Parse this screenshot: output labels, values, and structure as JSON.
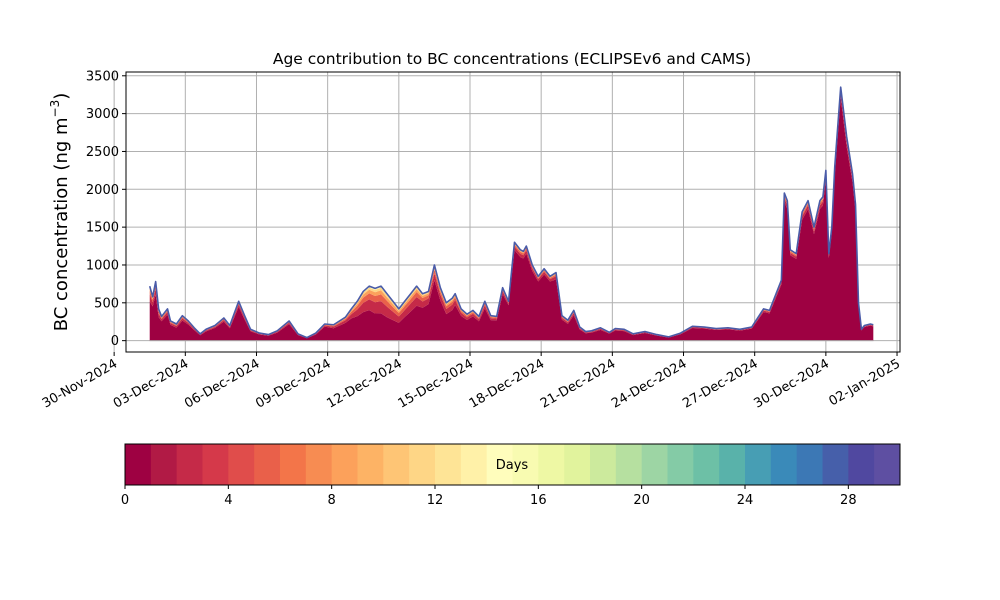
{
  "chart_data": {
    "type": "area",
    "title": "Age contribution to BC concentrations (ECLIPSEv6 and CAMS)",
    "ylabel": "BC concentration (ng m",
    "ylabel_sup": "−3",
    "ylabel_close": ")",
    "xlabel": "",
    "ylim": [
      -150,
      3550
    ],
    "xlim": [
      "2024-11-30T12:00",
      "2025-01-02T03:00"
    ],
    "yticks": [
      0,
      500,
      1000,
      1500,
      2000,
      2500,
      3000,
      3500
    ],
    "ytick_labels": [
      "0",
      "500",
      "1000",
      "1500",
      "2000",
      "2500",
      "3000",
      "3500"
    ],
    "xticks": [
      "2024-11-30",
      "2024-12-03",
      "2024-12-06",
      "2024-12-09",
      "2024-12-12",
      "2024-12-15",
      "2024-12-18",
      "2024-12-21",
      "2024-12-24",
      "2024-12-27",
      "2024-12-30",
      "2025-01-02"
    ],
    "xtick_labels": [
      "30-Nov-2024",
      "03-Dec-2024",
      "06-Dec-2024",
      "09-Dec-2024",
      "12-Dec-2024",
      "15-Dec-2024",
      "18-Dec-2024",
      "21-Dec-2024",
      "24-Dec-2024",
      "27-Dec-2024",
      "30-Dec-2024",
      "02-Jan-2025"
    ],
    "grid": true,
    "total": {
      "x": [
        "2024-12-01T12:00",
        "2024-12-01T15:00",
        "2024-12-01T18:00",
        "2024-12-01T21:00",
        "2024-12-02T00:00",
        "2024-12-02T06:00",
        "2024-12-02T09:00",
        "2024-12-02T15:00",
        "2024-12-02T21:00",
        "2024-12-03T03:00",
        "2024-12-03T09:00",
        "2024-12-03T15:00",
        "2024-12-03T21:00",
        "2024-12-04T06:00",
        "2024-12-04T15:00",
        "2024-12-04T21:00",
        "2024-12-05T06:00",
        "2024-12-05T12:00",
        "2024-12-05T18:00",
        "2024-12-06T03:00",
        "2024-12-06T12:00",
        "2024-12-06T21:00",
        "2024-12-07T09:00",
        "2024-12-07T18:00",
        "2024-12-08T03:00",
        "2024-12-08T12:00",
        "2024-12-08T21:00",
        "2024-12-09T06:00",
        "2024-12-09T18:00",
        "2024-12-10T00:00",
        "2024-12-10T06:00",
        "2024-12-10T12:00",
        "2024-12-10T18:00",
        "2024-12-11T00:00",
        "2024-12-11T06:00",
        "2024-12-11T12:00",
        "2024-12-11T18:00",
        "2024-12-12T00:00",
        "2024-12-12T06:00",
        "2024-12-12T12:00",
        "2024-12-12T18:00",
        "2024-12-13T00:00",
        "2024-12-13T06:00",
        "2024-12-13T12:00",
        "2024-12-13T18:00",
        "2024-12-14T00:00",
        "2024-12-14T06:00",
        "2024-12-14T09:00",
        "2024-12-14T15:00",
        "2024-12-14T21:00",
        "2024-12-15T03:00",
        "2024-12-15T09:00",
        "2024-12-15T15:00",
        "2024-12-15T21:00",
        "2024-12-16T03:00",
        "2024-12-16T09:00",
        "2024-12-16T15:00",
        "2024-12-16T21:00",
        "2024-12-17T03:00",
        "2024-12-17T06:00",
        "2024-12-17T09:00",
        "2024-12-17T15:00",
        "2024-12-17T21:00",
        "2024-12-18T03:00",
        "2024-12-18T09:00",
        "2024-12-18T15:00",
        "2024-12-18T21:00",
        "2024-12-19T03:00",
        "2024-12-19T09:00",
        "2024-12-19T15:00",
        "2024-12-19T21:00",
        "2024-12-20T03:00",
        "2024-12-20T12:00",
        "2024-12-20T21:00",
        "2024-12-21T03:00",
        "2024-12-21T12:00",
        "2024-12-21T21:00",
        "2024-12-22T09:00",
        "2024-12-22T21:00",
        "2024-12-23T09:00",
        "2024-12-23T21:00",
        "2024-12-24T09:00",
        "2024-12-24T21:00",
        "2024-12-25T09:00",
        "2024-12-25T21:00",
        "2024-12-26T09:00",
        "2024-12-26T21:00",
        "2024-12-27T09:00",
        "2024-12-27T15:00",
        "2024-12-27T21:00",
        "2024-12-28T03:00",
        "2024-12-28T06:00",
        "2024-12-28T09:00",
        "2024-12-28T12:00",
        "2024-12-28T18:00",
        "2024-12-29T00:00",
        "2024-12-29T06:00",
        "2024-12-29T12:00",
        "2024-12-29T18:00",
        "2024-12-29T21:00",
        "2024-12-30T00:00",
        "2024-12-30T03:00",
        "2024-12-30T06:00",
        "2024-12-30T09:00",
        "2024-12-30T15:00",
        "2024-12-30T21:00",
        "2024-12-31T03:00",
        "2024-12-31T06:00",
        "2024-12-31T09:00",
        "2024-12-31T12:00",
        "2024-12-31T15:00",
        "2024-12-31T21:00",
        "2025-01-01T00:00"
      ],
      "values": [
        720,
        580,
        780,
        420,
        320,
        420,
        260,
        220,
        330,
        260,
        170,
        90,
        150,
        200,
        300,
        200,
        520,
        330,
        150,
        100,
        80,
        130,
        260,
        90,
        40,
        100,
        220,
        210,
        310,
        420,
        520,
        650,
        720,
        690,
        720,
        620,
        520,
        420,
        520,
        620,
        720,
        620,
        650,
        1000,
        700,
        500,
        560,
        620,
        420,
        350,
        400,
        320,
        520,
        330,
        320,
        700,
        520,
        1300,
        1200,
        1180,
        1250,
        1000,
        850,
        950,
        850,
        900,
        330,
        270,
        400,
        180,
        120,
        130,
        170,
        110,
        160,
        150,
        90,
        120,
        80,
        50,
        100,
        190,
        180,
        160,
        170,
        150,
        180,
        420,
        400,
        600,
        800,
        1950,
        1850,
        1200,
        1150,
        1700,
        1850,
        1500,
        1850,
        1900,
        2250,
        1150,
        1500,
        2300,
        3350,
        2700,
        2200,
        1800,
        500,
        150,
        200,
        220,
        210
      ]
    },
    "first_day_share": [
      0.72,
      0.78,
      0.78,
      0.74,
      0.8,
      0.82,
      0.8,
      0.78,
      0.8,
      0.82,
      0.82,
      0.8,
      0.82,
      0.84,
      0.84,
      0.82,
      0.86,
      0.84,
      0.82,
      0.82,
      0.8,
      0.82,
      0.84,
      0.82,
      0.8,
      0.82,
      0.84,
      0.78,
      0.76,
      0.7,
      0.62,
      0.58,
      0.56,
      0.52,
      0.5,
      0.5,
      0.52,
      0.56,
      0.6,
      0.62,
      0.64,
      0.7,
      0.74,
      0.8,
      0.76,
      0.7,
      0.72,
      0.76,
      0.78,
      0.78,
      0.8,
      0.8,
      0.82,
      0.82,
      0.84,
      0.88,
      0.9,
      0.92,
      0.92,
      0.92,
      0.92,
      0.92,
      0.92,
      0.92,
      0.92,
      0.9,
      0.84,
      0.82,
      0.84,
      0.82,
      0.82,
      0.82,
      0.84,
      0.84,
      0.84,
      0.84,
      0.82,
      0.84,
      0.82,
      0.8,
      0.84,
      0.88,
      0.88,
      0.88,
      0.88,
      0.88,
      0.88,
      0.9,
      0.9,
      0.92,
      0.93,
      0.94,
      0.94,
      0.94,
      0.94,
      0.94,
      0.94,
      0.94,
      0.94,
      0.94,
      0.95,
      0.95,
      0.95,
      0.95,
      0.96,
      0.95,
      0.95,
      0.95,
      0.92,
      0.9,
      0.9,
      0.9,
      0.9
    ],
    "colorbar": {
      "label": "Days",
      "range": [
        0,
        30
      ],
      "bins": 30,
      "ticks": [
        0,
        4,
        8,
        12,
        16,
        20,
        24,
        28
      ],
      "tick_labels": [
        "0",
        "4",
        "8",
        "12",
        "16",
        "20",
        "24",
        "28"
      ],
      "colors": [
        "#9e0142",
        "#b11a45",
        "#c52a48",
        "#d5394a",
        "#e04d4b",
        "#e9604a",
        "#f37549",
        "#f78c52",
        "#fca15b",
        "#fdb365",
        "#fec575",
        "#fed686",
        "#fee496",
        "#fff1a8",
        "#fffdbc",
        "#f8fbb1",
        "#eef8a4",
        "#e1f39d",
        "#ccea9d",
        "#b6e0a0",
        "#9dd5a4",
        "#84cba6",
        "#6dc0a6",
        "#59b2aa",
        "#479eb4",
        "#3a8ab9",
        "#3c78b5",
        "#465faa",
        "#5048a0",
        "#5e4fa2"
      ]
    },
    "outline_color": "#4a5ba8",
    "baseline_color": "#aaaaaa"
  }
}
